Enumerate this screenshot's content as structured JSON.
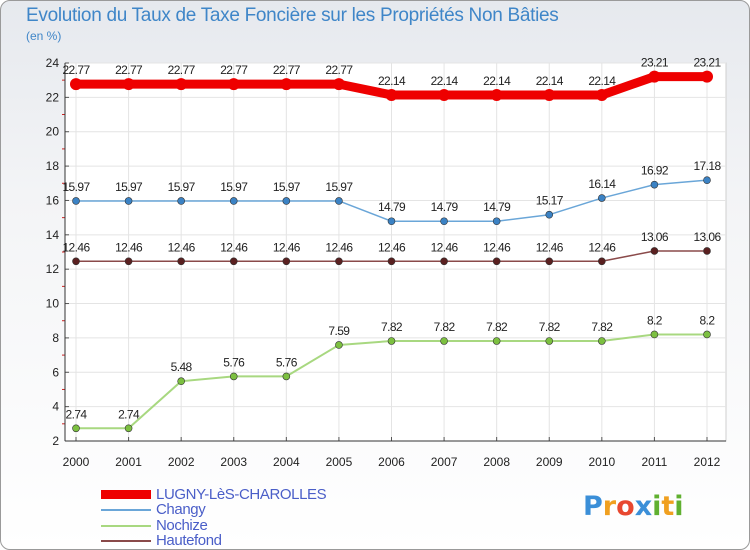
{
  "title": "Evolution du Taux de Taxe Foncière sur les Propriétés Non Bâties",
  "unit_label": "(en %)",
  "logo": {
    "text": "Proxiti",
    "letters": [
      "P",
      "r",
      "o",
      "x",
      "i",
      "t",
      "i"
    ],
    "colors": [
      "#3b8fd8",
      "#f0a020",
      "#e84830",
      "#3b8fd8",
      "#60b030",
      "#f0a020",
      "#60b030"
    ]
  },
  "chart_data": {
    "type": "line",
    "title": "Evolution du Taux de Taxe Foncière sur les Propriétés Non Bâties",
    "ylabel": "(en %)",
    "xlabel": "",
    "categories": [
      "2000",
      "2001",
      "2002",
      "2003",
      "2004",
      "2005",
      "2006",
      "2007",
      "2008",
      "2009",
      "2010",
      "2011",
      "2012"
    ],
    "ylim": [
      2,
      24
    ],
    "yticks": [
      2,
      4,
      6,
      8,
      10,
      12,
      14,
      16,
      18,
      20,
      22,
      24
    ],
    "legend_position": "bottom-left",
    "series": [
      {
        "name": "LUGNY-LèS-CHAROLLES",
        "color": "#ee0000",
        "marker": "#ee0000",
        "width": 9,
        "values": [
          22.77,
          22.77,
          22.77,
          22.77,
          22.77,
          22.77,
          22.14,
          22.14,
          22.14,
          22.14,
          22.14,
          23.21,
          23.21
        ],
        "labels": [
          "22.77",
          "22.77",
          "22.77",
          "22.77",
          "22.77",
          "22.77",
          "22.14",
          "22.14",
          "22.14",
          "22.14",
          "22.14",
          "23.21",
          "23.21"
        ]
      },
      {
        "name": "Changy",
        "color": "#6aa6d8",
        "marker": "#3b82c4",
        "width": 1.5,
        "values": [
          15.97,
          15.97,
          15.97,
          15.97,
          15.97,
          15.97,
          14.79,
          14.79,
          14.79,
          15.17,
          16.14,
          16.92,
          17.18
        ],
        "labels": [
          "15.97",
          "15.97",
          "15.97",
          "15.97",
          "15.97",
          "15.97",
          "14.79",
          "14.79",
          "14.79",
          "15.17",
          "16.14",
          "16.92",
          "17.18"
        ]
      },
      {
        "name": "Nochize",
        "color": "#a8d880",
        "marker": "#7cc040",
        "width": 2,
        "values": [
          2.74,
          2.74,
          5.48,
          5.76,
          5.76,
          7.59,
          7.82,
          7.82,
          7.82,
          7.82,
          7.82,
          8.2,
          8.2
        ],
        "labels": [
          "2.74",
          "2.74",
          "5.48",
          "5.76",
          "5.76",
          "7.59",
          "7.82",
          "7.82",
          "7.82",
          "7.82",
          "7.82",
          "8.2",
          "8.2"
        ]
      },
      {
        "name": "Hautefond",
        "color": "#8a4a4a",
        "marker": "#5a2020",
        "width": 1.5,
        "values": [
          12.46,
          12.46,
          12.46,
          12.46,
          12.46,
          12.46,
          12.46,
          12.46,
          12.46,
          12.46,
          12.46,
          13.06,
          13.06
        ],
        "labels": [
          "12.46",
          "12.46",
          "12.46",
          "12.46",
          "12.46",
          "12.46",
          "12.46",
          "12.46",
          "12.46",
          "12.46",
          "12.46",
          "13.06",
          "13.06"
        ]
      }
    ]
  }
}
